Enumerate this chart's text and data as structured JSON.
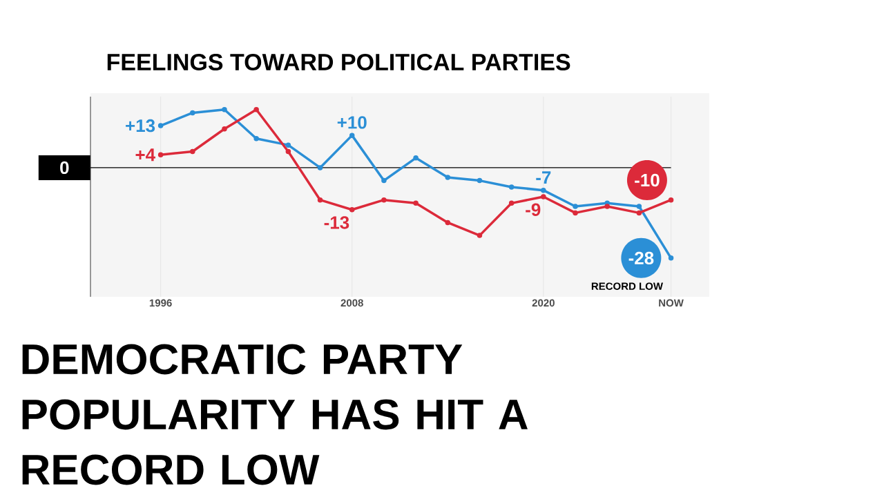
{
  "chart_data": {
    "type": "line",
    "title": "FEELINGS TOWARD POLITICAL PARTIES",
    "categories": [
      "1996",
      null,
      null,
      null,
      null,
      null,
      "2008",
      null,
      null,
      null,
      null,
      null,
      "2020",
      null,
      null,
      null,
      "NOW"
    ],
    "series": [
      {
        "color": "#2b8fd6",
        "values": [
          13,
          17,
          18,
          9,
          7,
          0,
          10,
          -4,
          3,
          -3,
          -4,
          -6,
          -7,
          -12,
          -11,
          -12,
          -28
        ],
        "value_labels": [
          "+13",
          null,
          null,
          null,
          null,
          null,
          "+10",
          null,
          null,
          null,
          null,
          null,
          "-7",
          null,
          null,
          null,
          "-28"
        ]
      },
      {
        "color": "#dc2a3a",
        "values": [
          4,
          5,
          12,
          18,
          5,
          -10,
          -13,
          -10,
          -11,
          -17,
          -21,
          -11,
          -9,
          -14,
          -12,
          -14,
          -10
        ],
        "value_labels": [
          "+4",
          null,
          null,
          null,
          null,
          null,
          "-13",
          null,
          null,
          null,
          null,
          null,
          "-9",
          null,
          null,
          null,
          "-10"
        ]
      }
    ],
    "ylim": [
      -40,
      22
    ],
    "ref_lines": [
      {
        "axis": "y",
        "value": 0,
        "label": "0"
      }
    ],
    "grid": "x",
    "marker": "circle",
    "line_style": "solid",
    "annotations": [
      {
        "text": "RECORD LOW",
        "x": "NOW",
        "y": -28
      },
      "DEMOCRATIC PARTY POPULARITY HAS HIT A RECORD LOW"
    ]
  }
}
